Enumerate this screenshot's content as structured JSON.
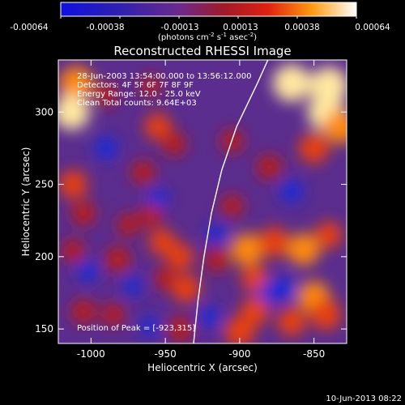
{
  "colorbar": {
    "ticks": [
      "-0.00064",
      "-0.00038",
      "-0.00013",
      "0.00013",
      "0.00038",
      "0.00064"
    ],
    "units_main": "(photons cm",
    "units_exp1": "-2",
    "units_mid1": " s",
    "units_exp2": "-1",
    "units_mid2": " asec",
    "units_exp3": "-2",
    "units_end": ")"
  },
  "annotations": {
    "time": "28-Jun-2003 13:54:00.000 to 13:56:12.000",
    "detectors": "Detectors: 4F 5F 6F 7F 8F 9F",
    "energy": "Energy Range: 12.0 - 25.0 keV",
    "clean": "Clean    Total counts: 9.64E+03",
    "peak": "Position of Peak = [-923,315]"
  },
  "footer": {
    "date": "10-Jun-2013 08:22"
  },
  "colors": {
    "blue": "#1a2ad8",
    "purple": "#5a2d8e",
    "red": "#b81e1e",
    "orange": "#ff8a10",
    "yellow": "#ffe8a0"
  },
  "chart_data": {
    "type": "heatmap",
    "title": "Reconstructed RHESSI Image",
    "xlabel": "Heliocentric X (arcsec)",
    "ylabel": "Heliocentric Y (arcsec)",
    "xlim": [
      -1022,
      -828
    ],
    "ylim": [
      140,
      336
    ],
    "xticks": [
      -1000,
      -950,
      -900,
      -850
    ],
    "yticks": [
      150,
      200,
      250,
      300
    ],
    "xtick_labels": [
      "-1000",
      "-950",
      "-900",
      "-850"
    ],
    "ytick_labels": [
      "150",
      "200",
      "250",
      "300"
    ],
    "colorbar_range": [
      -0.00064,
      0.00064
    ],
    "peak": [
      -923,
      315
    ],
    "limb_curve": [
      [
        -931,
        140
      ],
      [
        -928,
        170
      ],
      [
        -924,
        200
      ],
      [
        -919,
        230
      ],
      [
        -912,
        260
      ],
      [
        -902,
        290
      ],
      [
        -888,
        320
      ],
      [
        -881,
        336
      ]
    ],
    "blobs": [
      {
        "x": -1010,
        "y": 320,
        "value": 0.0005
      },
      {
        "x": -1013,
        "y": 300,
        "value": 0.00055
      },
      {
        "x": -990,
        "y": 312,
        "value": 0.0002
      },
      {
        "x": -960,
        "y": 318,
        "value": 0.00015
      },
      {
        "x": -955,
        "y": 290,
        "value": 0.0003
      },
      {
        "x": -944,
        "y": 278,
        "value": 0.00022
      },
      {
        "x": -865,
        "y": 320,
        "value": 0.0006
      },
      {
        "x": -840,
        "y": 318,
        "value": 0.00062
      },
      {
        "x": -842,
        "y": 300,
        "value": 0.00058
      },
      {
        "x": -832,
        "y": 290,
        "value": 0.0005
      },
      {
        "x": -850,
        "y": 275,
        "value": 0.0004
      },
      {
        "x": -880,
        "y": 262,
        "value": 0.00025
      },
      {
        "x": -905,
        "y": 280,
        "value": 0.0002
      },
      {
        "x": -1012,
        "y": 250,
        "value": 0.00035
      },
      {
        "x": -1005,
        "y": 230,
        "value": 0.00025
      },
      {
        "x": -965,
        "y": 258,
        "value": 0.00022
      },
      {
        "x": -990,
        "y": 275,
        "value": -0.0002
      },
      {
        "x": -955,
        "y": 240,
        "value": -0.00015
      },
      {
        "x": -960,
        "y": 228,
        "value": 0.0002
      },
      {
        "x": -952,
        "y": 210,
        "value": 0.0003
      },
      {
        "x": -975,
        "y": 222,
        "value": 0.00018
      },
      {
        "x": -1012,
        "y": 204,
        "value": 0.0002
      },
      {
        "x": -982,
        "y": 198,
        "value": 0.00028
      },
      {
        "x": -1002,
        "y": 190,
        "value": -0.00015
      },
      {
        "x": -972,
        "y": 180,
        "value": -0.00012
      },
      {
        "x": -950,
        "y": 185,
        "value": 0.00018
      },
      {
        "x": -940,
        "y": 200,
        "value": 0.0003
      },
      {
        "x": -936,
        "y": 178,
        "value": 0.00035
      },
      {
        "x": -915,
        "y": 198,
        "value": 0.00025
      },
      {
        "x": -895,
        "y": 205,
        "value": 0.00045
      },
      {
        "x": -877,
        "y": 210,
        "value": 0.0004
      },
      {
        "x": -857,
        "y": 205,
        "value": 0.00045
      },
      {
        "x": -840,
        "y": 215,
        "value": 0.0003
      },
      {
        "x": -865,
        "y": 245,
        "value": -0.0002
      },
      {
        "x": -905,
        "y": 235,
        "value": 0.0002
      },
      {
        "x": -915,
        "y": 215,
        "value": -0.00015
      },
      {
        "x": -890,
        "y": 185,
        "value": 0.0003
      },
      {
        "x": -880,
        "y": 175,
        "value": -0.00018
      },
      {
        "x": -870,
        "y": 178,
        "value": -0.0002
      },
      {
        "x": -850,
        "y": 172,
        "value": 0.00045
      },
      {
        "x": -842,
        "y": 160,
        "value": 0.00042
      },
      {
        "x": -865,
        "y": 155,
        "value": 0.00035
      },
      {
        "x": -900,
        "y": 148,
        "value": 0.0004
      },
      {
        "x": -890,
        "y": 162,
        "value": 0.00035
      },
      {
        "x": -920,
        "y": 158,
        "value": -0.00015
      },
      {
        "x": -985,
        "y": 160,
        "value": 0.0002
      },
      {
        "x": -1005,
        "y": 162,
        "value": 0.00025
      },
      {
        "x": -960,
        "y": 152,
        "value": -0.00012
      },
      {
        "x": -940,
        "y": 150,
        "value": 0.00028
      }
    ]
  }
}
